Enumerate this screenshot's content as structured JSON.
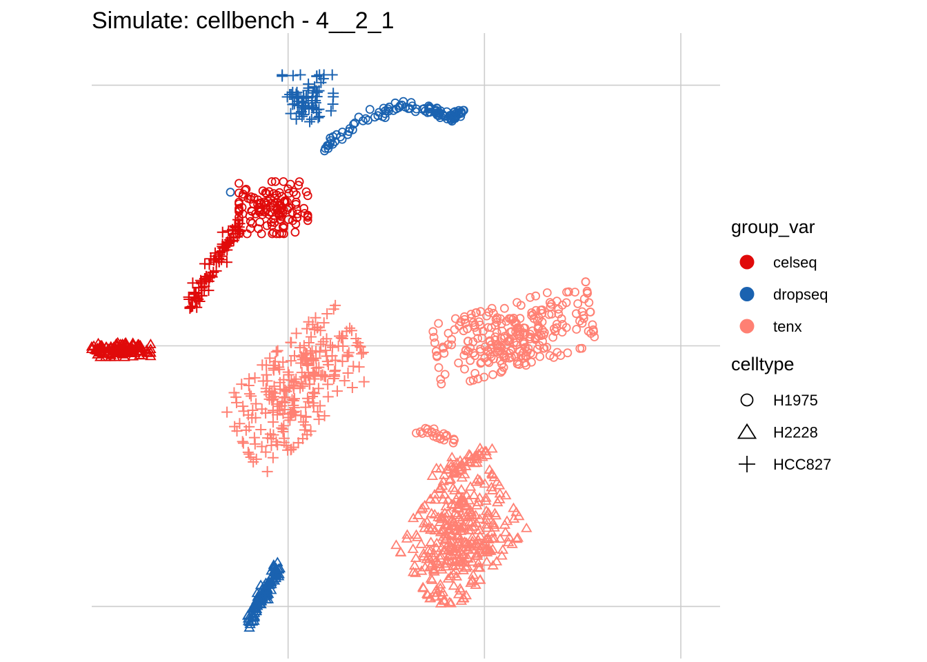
{
  "chart_data": {
    "type": "scatter",
    "title": "Simulate: cellbench - 4__2_1",
    "xlabel": "",
    "ylabel": "",
    "xlim": [
      -40,
      24
    ],
    "ylim": [
      -24,
      24
    ],
    "grid": true,
    "axis_ticks_visible": false,
    "legend_placement": "right",
    "colors": {
      "celseq": "#E00A0A",
      "dropseq": "#1A62B0",
      "tenx": "#FF8073"
    },
    "shapes": {
      "H1975": "circle",
      "H2228": "triangle",
      "HCC827": "plus"
    },
    "legends": [
      {
        "title": "group_var",
        "entries": [
          "celseq",
          "dropseq",
          "tenx"
        ]
      },
      {
        "title": "celltype",
        "entries": [
          "H1975",
          "H2228",
          "HCC827"
        ]
      }
    ],
    "clusters": [
      {
        "group_var": "dropseq",
        "celltype": "HCC827",
        "kind": "blob",
        "center": [
          -18,
          19
        ],
        "spread": [
          2.6,
          1.8
        ],
        "n": 70
      },
      {
        "group_var": "dropseq",
        "celltype": "H1975",
        "kind": "arc",
        "points": [
          [
            -16.5,
            15
          ],
          [
            -13,
            17.2
          ],
          [
            -9,
            18.3
          ],
          [
            -6,
            18.2
          ],
          [
            -3.5,
            17.5
          ],
          [
            -2,
            18
          ]
        ],
        "width": 0.5,
        "n": 110
      },
      {
        "group_var": "dropseq",
        "celltype": "H1975",
        "kind": "blob",
        "center": [
          -25.8,
          11.8
        ],
        "spread": [
          0.1,
          0.1
        ],
        "n": 1
      },
      {
        "group_var": "celseq",
        "celltype": "H1975",
        "kind": "blob",
        "center": [
          -21.5,
          10.6
        ],
        "spread": [
          3.5,
          2
        ],
        "n": 130
      },
      {
        "group_var": "celseq",
        "celltype": "HCC827",
        "kind": "line",
        "from": [
          -30,
          3
        ],
        "to": [
          -25,
          9.3
        ],
        "width": 0.6,
        "n": 90
      },
      {
        "group_var": "celseq",
        "celltype": "H2228",
        "kind": "blob",
        "center": [
          -37,
          -0.3
        ],
        "spread": [
          3,
          0.6
        ],
        "n": 120
      },
      {
        "group_var": "dropseq",
        "celltype": "H2228",
        "kind": "line",
        "from": [
          -24,
          -21.5
        ],
        "to": [
          -21,
          -16.8
        ],
        "width": 0.5,
        "n": 110
      },
      {
        "group_var": "tenx",
        "celltype": "HCC827",
        "kind": "blob",
        "center": [
          -19,
          -3.2
        ],
        "spread": [
          7,
          3.5
        ],
        "angle": 35,
        "n": 260
      },
      {
        "group_var": "tenx",
        "celltype": "H1975",
        "kind": "blob",
        "center": [
          3,
          0.8
        ],
        "spread": [
          8,
          2.5
        ],
        "angle": 12,
        "n": 260
      },
      {
        "group_var": "tenx",
        "celltype": "H1975",
        "kind": "line",
        "from": [
          -6.5,
          -6.5
        ],
        "to": [
          -3,
          -7.5
        ],
        "width": 0.5,
        "n": 22
      },
      {
        "group_var": "tenx",
        "celltype": "H2228",
        "kind": "blob",
        "center": [
          -2.5,
          -14.5
        ],
        "spread": [
          5.5,
          4
        ],
        "angle": 40,
        "n": 340
      },
      {
        "group_var": "tenx",
        "celltype": "H2228",
        "kind": "line",
        "from": [
          -5,
          -10
        ],
        "to": [
          1,
          -8
        ],
        "width": 0.6,
        "n": 40
      }
    ]
  }
}
